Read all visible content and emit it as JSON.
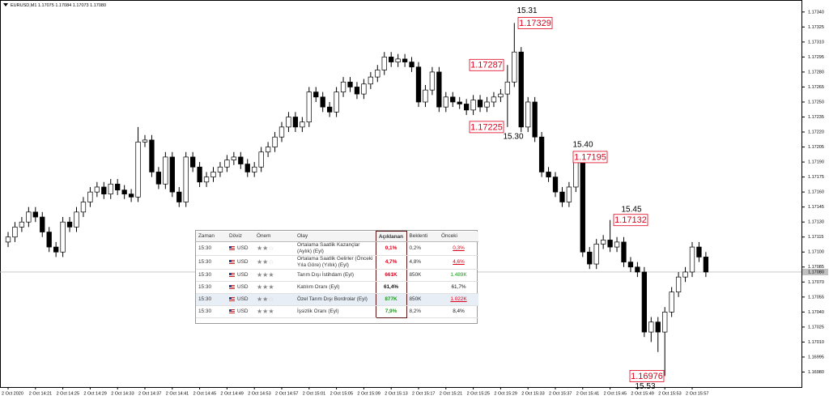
{
  "chart_data": {
    "type": "candlestick",
    "title": "EURUSD,M1  1.17075 1.17084 1.17073 1.17080",
    "up_color": "#ffffff",
    "down_color": "#000000",
    "outline_color": "#000000",
    "categories": [
      "2 Oct 2020",
      null,
      null,
      null,
      "2 Oct 14:21",
      null,
      null,
      null,
      "2 Oct 14:25",
      null,
      null,
      null,
      "2 Oct 14:29",
      null,
      null,
      null,
      "2 Oct 14:33",
      null,
      null,
      null,
      "2 Oct 14:37",
      null,
      null,
      null,
      "2 Oct 14:41",
      null,
      null,
      null,
      "2 Oct 14:45",
      null,
      null,
      null,
      "2 Oct 14:49",
      null,
      null,
      null,
      "2 Oct 14:53",
      null,
      null,
      null,
      "2 Oct 14:57",
      null,
      null,
      null,
      "2 Oct 15:01",
      null,
      null,
      null,
      "2 Oct 15:05",
      null,
      null,
      null,
      "2 Oct 15:09",
      null,
      null,
      null,
      "2 Oct 15:13",
      null,
      null,
      null,
      "2 Oct 15:17",
      null,
      null,
      null,
      "2 Oct 15:21",
      null,
      null,
      null,
      "2 Oct 15:25",
      null,
      null,
      null,
      "2 Oct 15:29",
      null,
      null,
      null,
      "2 Oct 15:33",
      null,
      null,
      null,
      "2 Oct 15:37",
      null,
      null,
      null,
      "2 Oct 15:41",
      null,
      null,
      null,
      "2 Oct 15:45",
      null,
      null,
      null,
      "2 Oct 15:49",
      null,
      null,
      null,
      "2 Oct 15:53",
      null,
      null,
      null,
      "2 Oct 15:57",
      null,
      null
    ],
    "open": [
      1.1711,
      1.17115,
      1.17125,
      1.1713,
      1.1714,
      1.17135,
      1.1712,
      1.17105,
      1.171,
      1.1713,
      1.17125,
      1.1714,
      1.1715,
      1.1716,
      1.17165,
      1.17158,
      1.17168,
      1.17162,
      1.17158,
      1.17155,
      1.1721,
      1.17212,
      1.1718,
      1.17168,
      1.17195,
      1.1716,
      1.1715,
      1.17195,
      1.17185,
      1.1717,
      1.17175,
      1.1718,
      1.17185,
      1.17192,
      1.17195,
      1.17188,
      1.1718,
      1.17185,
      1.172,
      1.17205,
      1.17215,
      1.17225,
      1.17235,
      1.17225,
      1.1723,
      1.1726,
      1.17255,
      1.17245,
      1.1724,
      1.1726,
      1.1727,
      1.17265,
      1.17258,
      1.17268,
      1.17275,
      1.17282,
      1.17295,
      1.1729,
      1.17293,
      1.1729,
      1.17285,
      1.1725,
      1.17262,
      1.1728,
      1.17245,
      1.17255,
      1.1725,
      1.17248,
      1.17242,
      1.17252,
      1.17245,
      1.1725,
      1.17255,
      1.17258,
      1.1727,
      1.173,
      1.17225,
      1.1725,
      1.17215,
      1.1718,
      1.17175,
      1.1716,
      1.1715,
      1.17165,
      1.17192,
      1.171,
      1.17088,
      1.17108,
      1.17112,
      1.17105,
      1.1711,
      1.1709,
      1.17085,
      1.1708,
      1.1702,
      1.1703,
      1.1702,
      1.1704,
      1.1706,
      1.17075,
      1.1708,
      1.17105,
      1.17095
    ],
    "high": [
      1.1712,
      1.1713,
      1.17135,
      1.17145,
      1.17145,
      1.1714,
      1.17125,
      1.1711,
      1.17135,
      1.17135,
      1.17145,
      1.17155,
      1.17165,
      1.1717,
      1.1717,
      1.17173,
      1.17173,
      1.17167,
      1.17163,
      1.17225,
      1.17217,
      1.17217,
      1.17185,
      1.172,
      1.172,
      1.17165,
      1.172,
      1.172,
      1.1719,
      1.1718,
      1.17185,
      1.1719,
      1.17197,
      1.172,
      1.172,
      1.17193,
      1.1719,
      1.17205,
      1.1721,
      1.1722,
      1.1723,
      1.1724,
      1.1724,
      1.17235,
      1.17265,
      1.17265,
      1.1726,
      1.1725,
      1.17265,
      1.17275,
      1.17275,
      1.1727,
      1.17273,
      1.1728,
      1.17287,
      1.173,
      1.173,
      1.17298,
      1.17298,
      1.17295,
      1.1729,
      1.17267,
      1.17285,
      1.17285,
      1.1726,
      1.1726,
      1.17255,
      1.17253,
      1.17257,
      1.17257,
      1.17255,
      1.1726,
      1.17263,
      1.17287,
      1.17329,
      1.17305,
      1.17255,
      1.17255,
      1.1722,
      1.17185,
      1.1718,
      1.17165,
      1.1717,
      1.17195,
      1.17195,
      1.17105,
      1.17113,
      1.17117,
      1.17132,
      1.17115,
      1.17115,
      1.17095,
      1.1709,
      1.17085,
      1.17035,
      1.17035,
      1.17045,
      1.17065,
      1.1708,
      1.17085,
      1.1711,
      1.1711,
      1.171
    ],
    "low": [
      1.17105,
      1.1711,
      1.1712,
      1.17125,
      1.1713,
      1.17115,
      1.171,
      1.17095,
      1.17095,
      1.1712,
      1.1712,
      1.17135,
      1.17145,
      1.17155,
      1.17153,
      1.17153,
      1.17157,
      1.17153,
      1.1715,
      1.1715,
      1.17205,
      1.17175,
      1.17163,
      1.17163,
      1.17155,
      1.17145,
      1.17145,
      1.1718,
      1.17165,
      1.17165,
      1.1717,
      1.17175,
      1.1718,
      1.17187,
      1.17183,
      1.17175,
      1.17175,
      1.1718,
      1.17195,
      1.172,
      1.1721,
      1.1722,
      1.1722,
      1.1722,
      1.17225,
      1.1725,
      1.1724,
      1.17235,
      1.17235,
      1.17255,
      1.1726,
      1.17253,
      1.17253,
      1.17263,
      1.1727,
      1.17277,
      1.17285,
      1.17285,
      1.17285,
      1.1728,
      1.17245,
      1.17245,
      1.17257,
      1.1724,
      1.1724,
      1.17245,
      1.17243,
      1.17237,
      1.17237,
      1.1724,
      1.1724,
      1.17245,
      1.1725,
      1.17225,
      1.17265,
      1.1722,
      1.1722,
      1.1721,
      1.17175,
      1.1717,
      1.17155,
      1.17145,
      1.17145,
      1.1716,
      1.17095,
      1.17083,
      1.17083,
      1.17103,
      1.171,
      1.171,
      1.17085,
      1.1708,
      1.17075,
      1.17015,
      1.1701,
      1.17,
      1.16976,
      1.17035,
      1.17055,
      1.1707,
      1.17075,
      1.1709,
      1.17075
    ],
    "close": [
      1.17115,
      1.17125,
      1.1713,
      1.1714,
      1.17135,
      1.1712,
      1.17105,
      1.171,
      1.1713,
      1.17125,
      1.1714,
      1.1715,
      1.1716,
      1.17165,
      1.17158,
      1.17168,
      1.17162,
      1.17158,
      1.17155,
      1.1721,
      1.17212,
      1.1718,
      1.17168,
      1.17195,
      1.1716,
      1.1715,
      1.17195,
      1.17185,
      1.1717,
      1.17175,
      1.1718,
      1.17185,
      1.17192,
      1.17195,
      1.17188,
      1.1718,
      1.17185,
      1.172,
      1.17205,
      1.17215,
      1.17225,
      1.17235,
      1.17225,
      1.1723,
      1.1726,
      1.17255,
      1.17245,
      1.1724,
      1.1726,
      1.1727,
      1.17265,
      1.17258,
      1.17268,
      1.17275,
      1.17282,
      1.17295,
      1.1729,
      1.17293,
      1.1729,
      1.17285,
      1.1725,
      1.17262,
      1.1728,
      1.17245,
      1.17255,
      1.1725,
      1.17248,
      1.17242,
      1.17252,
      1.17245,
      1.1725,
      1.17255,
      1.17258,
      1.1727,
      1.173,
      1.17225,
      1.1725,
      1.17215,
      1.1718,
      1.17175,
      1.1716,
      1.1715,
      1.17165,
      1.17192,
      1.171,
      1.17088,
      1.17108,
      1.17112,
      1.17105,
      1.1711,
      1.1709,
      1.17085,
      1.1708,
      1.1702,
      1.1703,
      1.1702,
      1.1704,
      1.1706,
      1.17075,
      1.1708,
      1.17105,
      1.17095,
      1.1708
    ],
    "ylim": [
      1.16965,
      1.17352
    ],
    "yticks": [
      {
        "value": 1.1734,
        "label": "1.17340"
      },
      1.17325,
      {
        "value": 1.1731,
        "label": "1.17310"
      },
      1.17295,
      {
        "value": 1.1728,
        "label": "1.17280"
      },
      1.17265,
      {
        "value": 1.1725,
        "label": "1.17250"
      },
      1.17235,
      {
        "value": 1.1722,
        "label": "1.17220"
      },
      1.17205,
      {
        "value": 1.1719,
        "label": "1.17190"
      },
      1.17175,
      {
        "value": 1.1716,
        "label": "1.17160"
      },
      1.17145,
      {
        "value": 1.1713,
        "label": "1.17130"
      },
      1.17115,
      {
        "value": 1.171,
        "label": "1.17100"
      },
      1.17085,
      {
        "value": 1.1707,
        "label": "1.17070"
      },
      1.17055,
      {
        "value": 1.1704,
        "label": "1.17040"
      },
      1.17025,
      {
        "value": 1.1701,
        "label": "1.17010"
      },
      1.16995,
      {
        "value": 1.1698,
        "label": "1.16980"
      }
    ],
    "last_price": {
      "value": 1.1708,
      "label": "1.17080"
    },
    "annotations": [
      {
        "price": 1.17329,
        "time": "15.31"
      },
      {
        "price": 1.17287
      },
      {
        "price": 1.17225,
        "time": "15.30"
      },
      {
        "price": 1.17195,
        "time": "15.40"
      },
      {
        "price": 1.17132,
        "time": "15.45"
      },
      {
        "price": 1.16976,
        "time": "15.53"
      }
    ]
  },
  "calendar": {
    "columns": [
      "Zaman",
      "Döviz",
      "Önem",
      "Olay",
      "Açıklanan",
      "Beklenti",
      "Önceki"
    ],
    "rows": [
      {
        "time": "15:30",
        "currency": "USD",
        "importance": 2,
        "event": "Ortalama Saatlik Kazançlar (Aylık) (Eyl)",
        "actual": "0,1%",
        "actual_tone": "red",
        "forecast": "0,2%",
        "previous": "0,3%",
        "previous_tone": "red-revised"
      },
      {
        "time": "15:30",
        "currency": "USD",
        "importance": 2,
        "event": "Ortalama Saatlik Gelirler (Önceki Yıla Göre) (Yıllık) (Eyl)",
        "actual": "4,7%",
        "actual_tone": "red",
        "forecast": "4,8%",
        "previous": "4,6%",
        "previous_tone": "red-revised"
      },
      {
        "time": "15:30",
        "currency": "USD",
        "importance": 3,
        "event": "Tarım Dışı İstihdam (Eyl)",
        "actual": "661K",
        "actual_tone": "red",
        "forecast": "850K",
        "previous": "1.489K",
        "previous_tone": "green"
      },
      {
        "time": "15:30",
        "currency": "USD",
        "importance": 3,
        "event": "Katılım Oranı (Eyl)",
        "actual": "61,4%",
        "actual_tone": "black",
        "previous": "61,7%",
        "previous_tone": "black"
      },
      {
        "time": "15:30",
        "currency": "USD",
        "importance": 2,
        "event": "Özel Tarım Dışı Bordrolar (Eyl)",
        "actual": "877K",
        "actual_tone": "green",
        "forecast": "850K",
        "previous": "1.022K",
        "previous_tone": "red-revised"
      },
      {
        "time": "15:30",
        "currency": "USD",
        "importance": 3,
        "event": "İşsizlik Oranı (Eyl)",
        "actual": "7,9%",
        "actual_tone": "green",
        "forecast": "8,2%",
        "previous": "8,4%",
        "previous_tone": "black"
      }
    ]
  }
}
